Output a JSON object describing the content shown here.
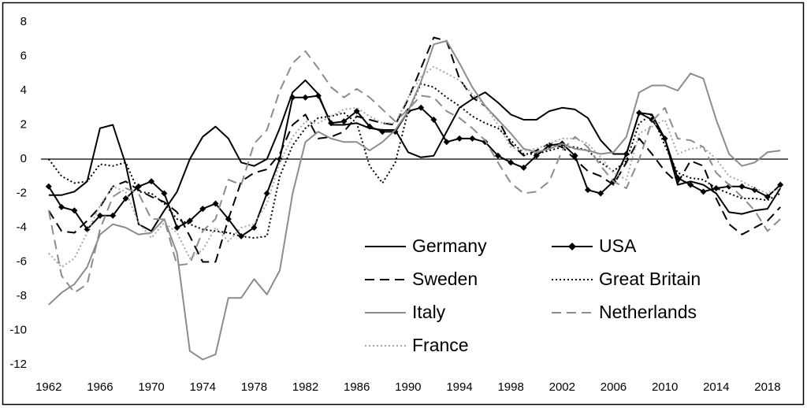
{
  "chart_data": {
    "type": "line",
    "x": [
      1962,
      1963,
      1964,
      1965,
      1966,
      1967,
      1968,
      1969,
      1970,
      1971,
      1972,
      1973,
      1974,
      1975,
      1976,
      1977,
      1978,
      1979,
      1980,
      1981,
      1982,
      1983,
      1984,
      1985,
      1986,
      1987,
      1988,
      1989,
      1990,
      1991,
      1992,
      1993,
      1994,
      1995,
      1996,
      1997,
      1998,
      1999,
      2000,
      2001,
      2002,
      2003,
      2004,
      2005,
      2006,
      2007,
      2008,
      2009,
      2010,
      2011,
      2012,
      2013,
      2014,
      2015,
      2016,
      2017,
      2018,
      2019
    ],
    "xlim": [
      1961.4,
      2019.6
    ],
    "xticks": [
      1962,
      1966,
      1970,
      1974,
      1978,
      1982,
      1986,
      1990,
      1994,
      1998,
      2002,
      2006,
      2010,
      2014,
      2018
    ],
    "ylim": [
      -12,
      8
    ],
    "yticks": [
      -12,
      -10,
      -8,
      -6,
      -4,
      -2,
      0,
      2,
      4,
      6,
      8
    ],
    "grid": false,
    "series": [
      {
        "name": "Germany",
        "color": "#000000",
        "dash": "solid",
        "values": [
          -2.1,
          -2.1,
          -1.9,
          -1.3,
          1.8,
          2.0,
          -0.3,
          -3.8,
          -4.2,
          -3.0,
          -1.9,
          0.0,
          1.3,
          1.9,
          1.2,
          -0.2,
          -0.4,
          0.0,
          1.8,
          3.9,
          4.6,
          3.8,
          2.0,
          2.0,
          2.1,
          1.8,
          1.7,
          1.7,
          0.4,
          0.1,
          0.2,
          1.6,
          3.0,
          3.5,
          3.9,
          3.3,
          2.6,
          2.3,
          2.3,
          2.8,
          3.0,
          2.9,
          2.4,
          1.1,
          0.3,
          0.3,
          2.7,
          2.6,
          1.2,
          -1.5,
          -1.3,
          -1.5,
          -2.0,
          -3.1,
          -3.2,
          -3.0,
          -2.9,
          -1.7
        ]
      },
      {
        "name": "USA",
        "color": "#000000",
        "dash": "solid",
        "marker": "diamond",
        "values": [
          -1.6,
          -2.8,
          -3.0,
          -4.1,
          -3.3,
          -3.3,
          -2.3,
          -1.6,
          -1.3,
          -2.0,
          -4.0,
          -3.6,
          -2.9,
          -2.6,
          -3.5,
          -4.5,
          -4.0,
          -2.0,
          0.0,
          3.6,
          3.6,
          3.7,
          2.1,
          2.2,
          2.8,
          1.9,
          1.6,
          1.6,
          2.8,
          3.0,
          2.3,
          1.0,
          1.2,
          1.2,
          1.0,
          0.2,
          -0.2,
          -0.5,
          0.2,
          0.8,
          0.9,
          0.2,
          -1.8,
          -2.0,
          -1.3,
          0.3,
          2.7,
          2.3,
          1.2,
          -1.1,
          -1.5,
          -1.9,
          -1.7,
          -1.6,
          -1.6,
          -1.8,
          -2.2,
          -1.5
        ]
      },
      {
        "name": "Sweden",
        "color": "#000000",
        "dash": "dashed",
        "values": [
          -3.0,
          -4.2,
          -4.3,
          -3.6,
          -2.8,
          -1.6,
          -1.3,
          -1.8,
          -2.2,
          -2.5,
          -3.1,
          -4.5,
          -6.0,
          -6.0,
          -3.5,
          -1.3,
          -0.8,
          -0.6,
          0.3,
          2.0,
          2.6,
          1.2,
          1.3,
          1.6,
          2.5,
          2.3,
          2.1,
          2.0,
          3.5,
          5.3,
          7.1,
          6.9,
          4.7,
          3.6,
          3.1,
          2.3,
          0.9,
          0.2,
          0.5,
          0.9,
          0.7,
          0.0,
          -0.7,
          -1.0,
          -1.5,
          -0.2,
          1.2,
          0.3,
          -0.7,
          -1.4,
          -0.1,
          -0.4,
          -2.3,
          -3.8,
          -4.4,
          -4.0,
          -3.6,
          -2.8
        ]
      },
      {
        "name": "Great Britain",
        "color": "#000000",
        "dash": "dotted",
        "values": [
          0.0,
          -1.0,
          -1.4,
          -1.3,
          -0.3,
          -0.4,
          -0.2,
          -1.9,
          -2.0,
          -2.6,
          -3.5,
          -3.8,
          -4.1,
          -4.2,
          -4.3,
          -4.5,
          -4.6,
          -4.5,
          -1.0,
          0.8,
          1.8,
          2.4,
          2.5,
          2.7,
          2.1,
          -0.4,
          -1.4,
          -0.2,
          2.8,
          4.4,
          4.2,
          3.6,
          3.1,
          2.5,
          2.1,
          1.8,
          1.1,
          0.3,
          0.3,
          0.5,
          0.7,
          0.7,
          0.5,
          -0.2,
          -0.7,
          -0.1,
          2.1,
          2.6,
          0.8,
          -0.8,
          -1.1,
          -1.2,
          -1.7,
          -2.0,
          -2.3,
          -2.3,
          -2.4,
          -2.0
        ]
      },
      {
        "name": "Italy",
        "color": "#8c8c8c",
        "dash": "solid",
        "values": [
          -8.5,
          -7.8,
          -7.3,
          -6.3,
          -4.4,
          -3.8,
          -4.0,
          -4.4,
          -4.3,
          -3.5,
          -5.5,
          -11.2,
          -11.7,
          -11.4,
          -8.1,
          -8.1,
          -7.0,
          -7.9,
          -6.5,
          -2.0,
          1.0,
          1.6,
          1.2,
          1.0,
          1.0,
          0.5,
          1.0,
          1.7,
          2.8,
          4.5,
          6.7,
          6.9,
          5.6,
          4.2,
          3.1,
          2.3,
          1.5,
          0.6,
          0.4,
          0.6,
          0.9,
          0.6,
          0.5,
          0.3,
          0.4,
          1.3,
          3.9,
          4.3,
          4.3,
          4.0,
          5.0,
          4.7,
          2.3,
          0.3,
          -0.4,
          -0.2,
          0.4,
          0.5
        ]
      },
      {
        "name": "Netherlands",
        "color": "#8c8c8c",
        "dash": "dashed",
        "values": [
          -3.0,
          -6.8,
          -7.8,
          -7.3,
          -4.1,
          -2.2,
          -1.7,
          -2.0,
          -3.5,
          -3.5,
          -6.2,
          -6.1,
          -4.2,
          -3.5,
          -1.2,
          -1.5,
          0.9,
          1.7,
          4.0,
          5.6,
          6.3,
          5.3,
          4.2,
          3.6,
          4.1,
          3.6,
          2.9,
          2.2,
          2.9,
          3.7,
          3.6,
          2.8,
          2.4,
          1.8,
          1.1,
          -0.2,
          -1.4,
          -2.0,
          -1.9,
          -1.3,
          0.5,
          1.3,
          0.7,
          -0.4,
          -1.3,
          -1.7,
          0.0,
          2.2,
          3.0,
          1.2,
          1.1,
          0.7,
          -0.8,
          -1.5,
          -2.2,
          -3.0,
          -4.2,
          -3.5
        ]
      },
      {
        "name": "France",
        "color": "#a6a6a6",
        "dash": "dotted",
        "values": [
          -5.5,
          -6.3,
          -5.8,
          -4.3,
          -2.7,
          -1.6,
          -1.9,
          -3.7,
          -4.6,
          -3.7,
          -4.3,
          -5.8,
          -5.3,
          -4.0,
          -4.8,
          -4.0,
          -3.8,
          -2.6,
          -0.2,
          1.3,
          2.2,
          2.1,
          2.5,
          2.9,
          3.0,
          2.5,
          2.1,
          2.1,
          3.6,
          4.8,
          5.4,
          5.0,
          4.6,
          3.8,
          3.1,
          2.0,
          0.7,
          0.5,
          0.6,
          0.9,
          1.2,
          1.2,
          0.9,
          0.1,
          -0.8,
          -1.2,
          1.5,
          1.9,
          2.3,
          0.3,
          0.6,
          0.7,
          0.0,
          -1.0,
          -1.3,
          -1.7,
          -2.0,
          -1.7
        ]
      }
    ]
  }
}
